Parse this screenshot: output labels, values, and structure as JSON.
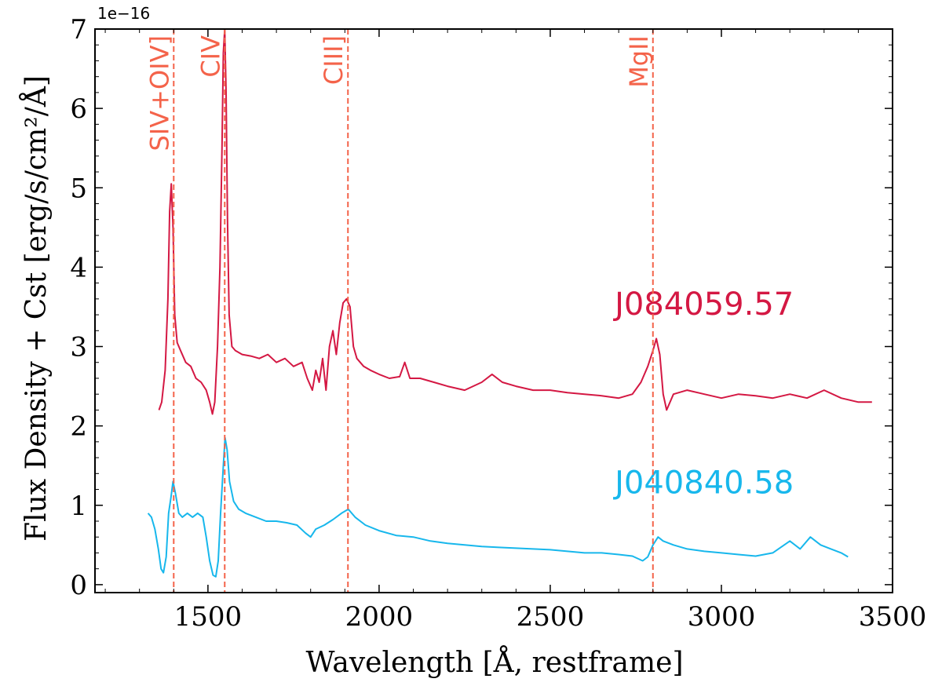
{
  "chart_data": {
    "type": "line",
    "xlabel": "Wavelength [Å, restframe]",
    "ylabel": "Flux Density + Cst [erg/s/cm²/Å]",
    "y_multiplier": "1e−16",
    "xlim": [
      1170,
      3500
    ],
    "ylim": [
      -0.1,
      7.0
    ],
    "x_ticks": [
      1500,
      2000,
      2500,
      3000,
      3500
    ],
    "x_tick_labels": [
      "1500",
      "2000",
      "2500",
      "3000",
      "3500"
    ],
    "y_ticks": [
      0,
      1,
      2,
      3,
      4,
      5,
      6,
      7
    ],
    "y_tick_labels": [
      "0",
      "1",
      "2",
      "3",
      "4",
      "5",
      "6",
      "7"
    ],
    "grid": false,
    "emission_lines": [
      {
        "label": "SIV+OIV]",
        "x": 1400
      },
      {
        "label": "CIV",
        "x": 1549
      },
      {
        "label": "CIII]",
        "x": 1909
      },
      {
        "label": "MgII",
        "x": 2800
      }
    ],
    "emission_line_color": "#f4634a",
    "series": [
      {
        "name": "J084059.57",
        "color": "#d41843",
        "label_pos": [
          2950,
          3.4
        ],
        "points": [
          [
            1357,
            2.2
          ],
          [
            1365,
            2.3
          ],
          [
            1375,
            2.7
          ],
          [
            1383,
            3.6
          ],
          [
            1388,
            4.7
          ],
          [
            1393,
            5.05
          ],
          [
            1398,
            4.5
          ],
          [
            1403,
            3.4
          ],
          [
            1410,
            3.05
          ],
          [
            1420,
            2.95
          ],
          [
            1435,
            2.8
          ],
          [
            1450,
            2.75
          ],
          [
            1465,
            2.6
          ],
          [
            1480,
            2.55
          ],
          [
            1495,
            2.45
          ],
          [
            1505,
            2.3
          ],
          [
            1513,
            2.15
          ],
          [
            1520,
            2.3
          ],
          [
            1528,
            3.0
          ],
          [
            1535,
            4.0
          ],
          [
            1541,
            5.5
          ],
          [
            1545,
            6.7
          ],
          [
            1549,
            7.0
          ],
          [
            1553,
            6.2
          ],
          [
            1557,
            4.6
          ],
          [
            1562,
            3.4
          ],
          [
            1570,
            3.0
          ],
          [
            1580,
            2.95
          ],
          [
            1600,
            2.9
          ],
          [
            1625,
            2.88
          ],
          [
            1650,
            2.85
          ],
          [
            1675,
            2.9
          ],
          [
            1700,
            2.8
          ],
          [
            1725,
            2.85
          ],
          [
            1750,
            2.75
          ],
          [
            1775,
            2.8
          ],
          [
            1790,
            2.6
          ],
          [
            1805,
            2.45
          ],
          [
            1815,
            2.7
          ],
          [
            1825,
            2.55
          ],
          [
            1835,
            2.85
          ],
          [
            1845,
            2.45
          ],
          [
            1855,
            3.0
          ],
          [
            1865,
            3.2
          ],
          [
            1875,
            2.9
          ],
          [
            1885,
            3.3
          ],
          [
            1895,
            3.55
          ],
          [
            1905,
            3.6
          ],
          [
            1915,
            3.5
          ],
          [
            1925,
            3.0
          ],
          [
            1935,
            2.85
          ],
          [
            1955,
            2.75
          ],
          [
            1975,
            2.7
          ],
          [
            2000,
            2.65
          ],
          [
            2030,
            2.6
          ],
          [
            2060,
            2.62
          ],
          [
            2075,
            2.8
          ],
          [
            2090,
            2.6
          ],
          [
            2120,
            2.6
          ],
          [
            2160,
            2.55
          ],
          [
            2200,
            2.5
          ],
          [
            2250,
            2.45
          ],
          [
            2300,
            2.55
          ],
          [
            2330,
            2.65
          ],
          [
            2360,
            2.55
          ],
          [
            2400,
            2.5
          ],
          [
            2450,
            2.45
          ],
          [
            2500,
            2.45
          ],
          [
            2550,
            2.42
          ],
          [
            2600,
            2.4
          ],
          [
            2650,
            2.38
          ],
          [
            2700,
            2.35
          ],
          [
            2740,
            2.4
          ],
          [
            2765,
            2.55
          ],
          [
            2785,
            2.75
          ],
          [
            2800,
            2.95
          ],
          [
            2810,
            3.1
          ],
          [
            2820,
            2.9
          ],
          [
            2830,
            2.4
          ],
          [
            2840,
            2.2
          ],
          [
            2860,
            2.4
          ],
          [
            2900,
            2.45
          ],
          [
            2950,
            2.4
          ],
          [
            3000,
            2.35
          ],
          [
            3050,
            2.4
          ],
          [
            3100,
            2.38
          ],
          [
            3150,
            2.35
          ],
          [
            3200,
            2.4
          ],
          [
            3250,
            2.35
          ],
          [
            3300,
            2.45
          ],
          [
            3350,
            2.35
          ],
          [
            3400,
            2.3
          ],
          [
            3440,
            2.3
          ]
        ]
      },
      {
        "name": "J040840.58",
        "color": "#17b7ec",
        "label_pos": [
          2950,
          1.15
        ],
        "points": [
          [
            1325,
            0.9
          ],
          [
            1335,
            0.85
          ],
          [
            1345,
            0.7
          ],
          [
            1355,
            0.45
          ],
          [
            1363,
            0.2
          ],
          [
            1370,
            0.15
          ],
          [
            1378,
            0.35
          ],
          [
            1385,
            0.9
          ],
          [
            1392,
            1.1
          ],
          [
            1398,
            1.3
          ],
          [
            1405,
            1.15
          ],
          [
            1415,
            0.9
          ],
          [
            1425,
            0.85
          ],
          [
            1440,
            0.9
          ],
          [
            1455,
            0.85
          ],
          [
            1470,
            0.9
          ],
          [
            1485,
            0.85
          ],
          [
            1495,
            0.6
          ],
          [
            1505,
            0.3
          ],
          [
            1515,
            0.12
          ],
          [
            1523,
            0.1
          ],
          [
            1530,
            0.3
          ],
          [
            1537,
            0.9
          ],
          [
            1545,
            1.5
          ],
          [
            1550,
            1.85
          ],
          [
            1556,
            1.7
          ],
          [
            1563,
            1.3
          ],
          [
            1575,
            1.05
          ],
          [
            1590,
            0.95
          ],
          [
            1610,
            0.9
          ],
          [
            1640,
            0.85
          ],
          [
            1670,
            0.8
          ],
          [
            1700,
            0.8
          ],
          [
            1730,
            0.78
          ],
          [
            1760,
            0.75
          ],
          [
            1785,
            0.65
          ],
          [
            1800,
            0.6
          ],
          [
            1815,
            0.7
          ],
          [
            1840,
            0.75
          ],
          [
            1865,
            0.82
          ],
          [
            1890,
            0.9
          ],
          [
            1910,
            0.95
          ],
          [
            1930,
            0.85
          ],
          [
            1960,
            0.75
          ],
          [
            2000,
            0.68
          ],
          [
            2050,
            0.62
          ],
          [
            2100,
            0.6
          ],
          [
            2150,
            0.55
          ],
          [
            2200,
            0.52
          ],
          [
            2250,
            0.5
          ],
          [
            2300,
            0.48
          ],
          [
            2350,
            0.47
          ],
          [
            2400,
            0.46
          ],
          [
            2450,
            0.45
          ],
          [
            2500,
            0.44
          ],
          [
            2550,
            0.42
          ],
          [
            2600,
            0.4
          ],
          [
            2650,
            0.4
          ],
          [
            2700,
            0.38
          ],
          [
            2740,
            0.36
          ],
          [
            2770,
            0.3
          ],
          [
            2785,
            0.35
          ],
          [
            2800,
            0.5
          ],
          [
            2815,
            0.6
          ],
          [
            2830,
            0.55
          ],
          [
            2860,
            0.5
          ],
          [
            2900,
            0.45
          ],
          [
            2950,
            0.42
          ],
          [
            3000,
            0.4
          ],
          [
            3050,
            0.38
          ],
          [
            3100,
            0.36
          ],
          [
            3150,
            0.4
          ],
          [
            3200,
            0.55
          ],
          [
            3230,
            0.45
          ],
          [
            3260,
            0.6
          ],
          [
            3290,
            0.5
          ],
          [
            3320,
            0.45
          ],
          [
            3350,
            0.4
          ],
          [
            3370,
            0.35
          ]
        ]
      }
    ]
  }
}
